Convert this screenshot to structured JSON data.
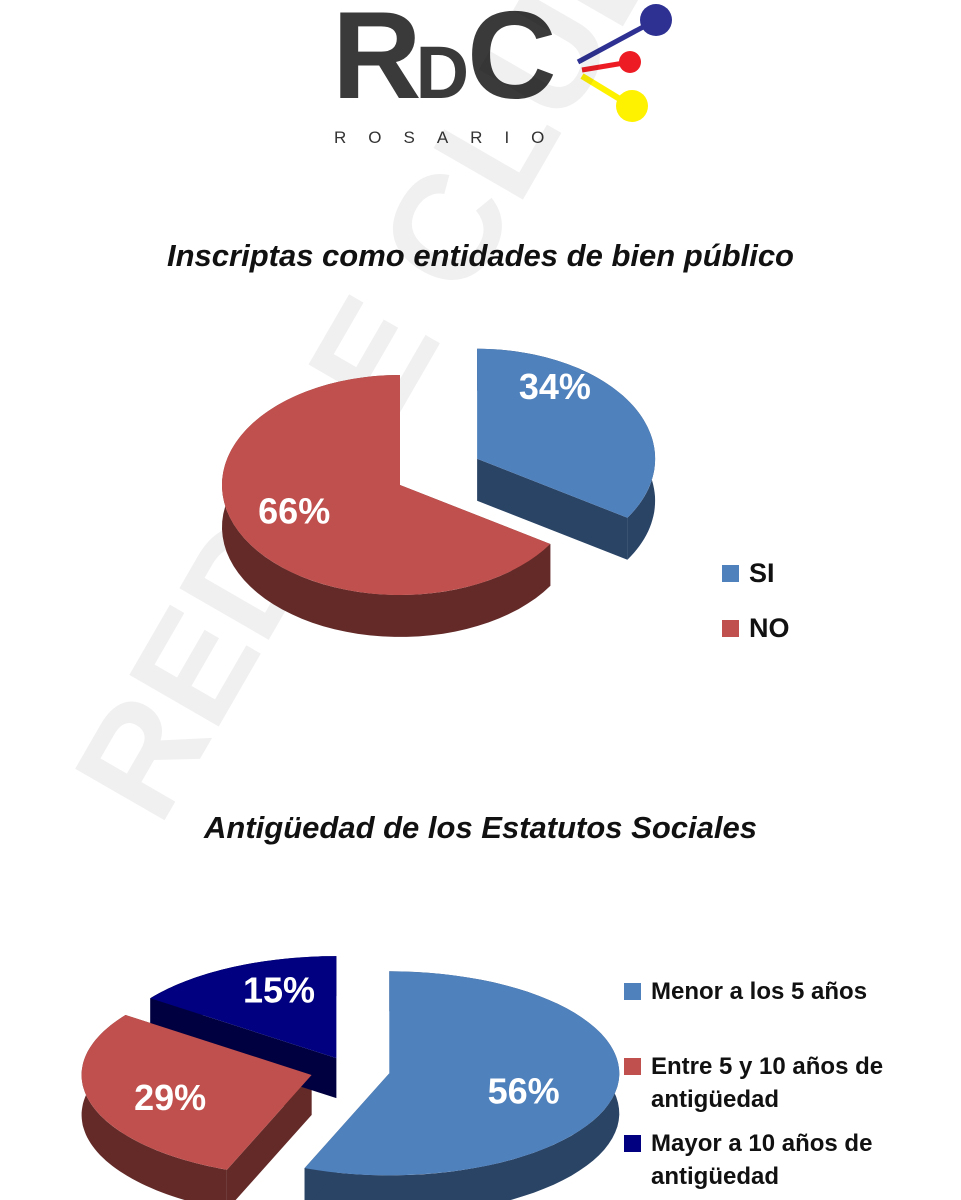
{
  "logo": {
    "letters": [
      "R",
      "D",
      "C"
    ],
    "subtitle": "ROSARIO",
    "colors": {
      "text": "#3a3a3a",
      "blue": "#2e3192",
      "red": "#ed1c24",
      "yellow": "#fff200"
    }
  },
  "watermark": "RED DE CLUBES",
  "chart_data": [
    {
      "type": "pie",
      "title": "Inscriptas como entidades de bien público",
      "slices": [
        {
          "label": "SI",
          "value": 34,
          "display": "34%",
          "color": "#4f81bd",
          "side_color": "#2a4466"
        },
        {
          "label": "NO",
          "value": 66,
          "display": "66%",
          "color": "#c0504d",
          "side_color": "#632a28"
        }
      ],
      "legend_position": "bottom-right"
    },
    {
      "type": "pie",
      "title": "Antigüedad de los Estatutos Sociales",
      "slices": [
        {
          "label": "Menor a los 5 años",
          "value": 56,
          "display": "56%",
          "color": "#4f81bd",
          "side_color": "#2a4466"
        },
        {
          "label": "Entre 5 y 10 años de antigüedad",
          "value": 29,
          "display": "29%",
          "color": "#c0504d",
          "side_color": "#632a28"
        },
        {
          "label": "Mayor a 10 años de antigüedad",
          "value": 15,
          "display": "15%",
          "color": "#000080",
          "side_color": "#000040"
        }
      ],
      "legend_position": "right"
    }
  ]
}
